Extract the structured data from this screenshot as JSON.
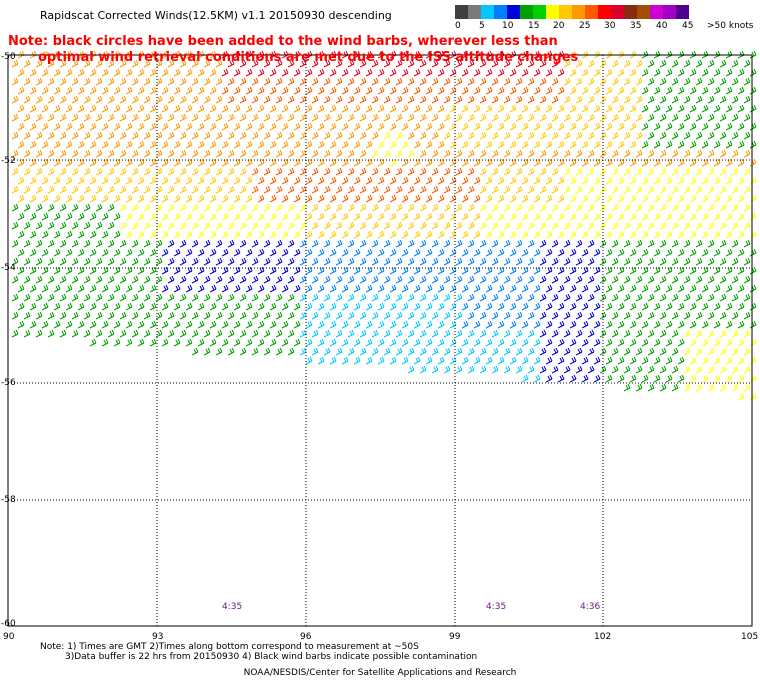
{
  "title": "Rapidscat Corrected Winds(12.5KM) v1.1 20150930 descending",
  "note": {
    "line1": "Note: black circles have been added to the wind barbs, wherever less than",
    "line2": "optimal wind retrieval conditions are met due to the ISS altitude changes"
  },
  "colorbar": {
    "labels": [
      "0",
      "5",
      "10",
      "15",
      "20",
      "25",
      "30",
      "35",
      "40",
      "45",
      ">50 knots"
    ],
    "colors": [
      "#404040",
      "#7a7a7a",
      "#00c8ff",
      "#0080ff",
      "#0000d8",
      "#00a000",
      "#00d000",
      "#ffff00",
      "#ffc800",
      "#ff9900",
      "#ff5a00",
      "#ff0000",
      "#d8002a",
      "#8c2a10",
      "#a05000",
      "#d000d0",
      "#a000c8",
      "#500090"
    ]
  },
  "axes": {
    "lat_labels": [
      "-50",
      "-52",
      "-54",
      "-56",
      "-58",
      "-60"
    ],
    "lon_labels": [
      "90",
      "93",
      "96",
      "99",
      "102",
      "105"
    ]
  },
  "times": [
    "4:35",
    "4:35",
    "4:36"
  ],
  "bottom_notes": {
    "line1": "Note: 1) Times are GMT 2)Times along bottom correspond to measurement at ~50S",
    "line2": "3)Data buffer is 22 hrs from 20150930 4) Black wind barbs indicate possible contamination"
  },
  "credit": "NOAA/NESDIS/Center for Satellite Applications and Research"
}
